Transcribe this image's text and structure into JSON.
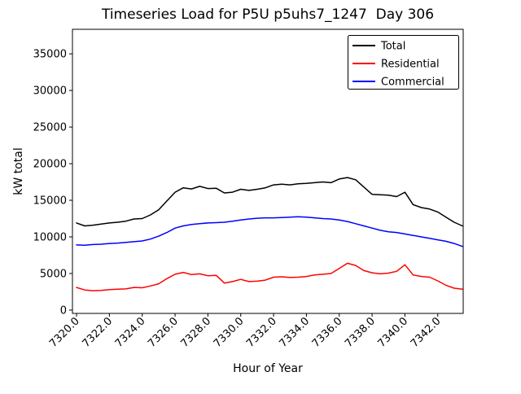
{
  "chart_data": {
    "type": "line",
    "title": "Timeseries Load for P5U p5uhs7_1247  Day 306",
    "xlabel": "Hour of Year",
    "ylabel": "kW total",
    "xlim": [
      7319.75,
      7343.55
    ],
    "ylim": [
      -450,
      38350
    ],
    "grid": false,
    "legend_position": "upper right",
    "xticks": [
      7320,
      7322,
      7324,
      7326,
      7328,
      7330,
      7332,
      7334,
      7336,
      7338,
      7340,
      7342
    ],
    "xtick_labels": [
      "7320.0",
      "7322.0",
      "7324.0",
      "7326.0",
      "7328.0",
      "7330.0",
      "7332.0",
      "7334.0",
      "7336.0",
      "7338.0",
      "7340.0",
      "7342.0"
    ],
    "yticks": [
      0,
      5000,
      10000,
      15000,
      20000,
      25000,
      30000,
      35000
    ],
    "ytick_labels": [
      "0",
      "5000",
      "10000",
      "15000",
      "20000",
      "25000",
      "30000",
      "35000"
    ],
    "x": [
      7320.0,
      7320.5,
      7321.0,
      7321.5,
      7322.0,
      7322.5,
      7323.0,
      7323.5,
      7324.0,
      7324.5,
      7325.0,
      7325.5,
      7326.0,
      7326.5,
      7327.0,
      7327.5,
      7328.0,
      7328.5,
      7329.0,
      7329.5,
      7330.0,
      7330.5,
      7331.0,
      7331.5,
      7332.0,
      7332.5,
      7333.0,
      7333.5,
      7334.0,
      7334.5,
      7335.0,
      7335.5,
      7336.0,
      7336.5,
      7337.0,
      7337.5,
      7338.0,
      7338.5,
      7339.0,
      7339.5,
      7340.0,
      7340.5,
      7341.0,
      7341.5,
      7342.0,
      7342.5,
      7343.0,
      7343.5
    ],
    "series": [
      {
        "name": "Total",
        "color": "#000000",
        "values": [
          11900,
          11500,
          11600,
          11750,
          11900,
          12000,
          12150,
          12450,
          12500,
          13000,
          13700,
          14900,
          16100,
          16700,
          16550,
          16900,
          16600,
          16650,
          16000,
          16100,
          16500,
          16350,
          16500,
          16700,
          17100,
          17200,
          17100,
          17250,
          17300,
          17400,
          17500,
          17400,
          17900,
          18100,
          17800,
          16800,
          15800,
          15750,
          15700,
          15500,
          16100,
          14400,
          14000,
          13800,
          13400,
          12700,
          12000,
          11500
        ]
      },
      {
        "name": "Residential",
        "color": "#ff0000",
        "values": [
          3100,
          2750,
          2650,
          2700,
          2800,
          2850,
          2900,
          3100,
          3050,
          3300,
          3600,
          4300,
          4900,
          5150,
          4850,
          4950,
          4700,
          4750,
          3700,
          3900,
          4200,
          3900,
          3950,
          4100,
          4500,
          4550,
          4450,
          4500,
          4600,
          4800,
          4900,
          5000,
          5700,
          6400,
          6100,
          5400,
          5100,
          4950,
          5050,
          5300,
          6200,
          4800,
          4600,
          4500,
          4000,
          3400,
          3000,
          2850
        ]
      },
      {
        "name": "Commercial",
        "color": "#0000ff",
        "values": [
          8900,
          8850,
          8950,
          9000,
          9100,
          9150,
          9250,
          9350,
          9450,
          9700,
          10100,
          10600,
          11200,
          11500,
          11700,
          11800,
          11900,
          11950,
          12000,
          12150,
          12300,
          12450,
          12550,
          12600,
          12600,
          12650,
          12700,
          12750,
          12700,
          12600,
          12500,
          12450,
          12300,
          12100,
          11800,
          11500,
          11200,
          10900,
          10700,
          10600,
          10400,
          10200,
          10000,
          9800,
          9600,
          9400,
          9100,
          8700
        ]
      }
    ]
  }
}
